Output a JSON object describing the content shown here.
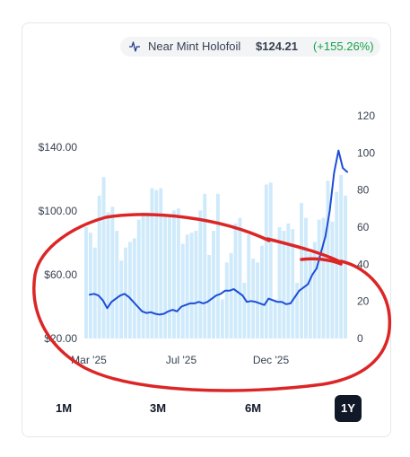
{
  "legend": {
    "icon": "trend-line-icon",
    "name": "Near Mint Holofoil",
    "price": "$124.21",
    "change": "(+155.26%)",
    "change_color": "#16a34a"
  },
  "range_buttons": [
    {
      "label": "1M",
      "active": false
    },
    {
      "label": "3M",
      "active": false
    },
    {
      "label": "6M",
      "active": false
    },
    {
      "label": "1Y",
      "active": true
    }
  ],
  "chart_data": {
    "type": "line",
    "x_ticks": [
      "Mar '25",
      "Jul '25",
      "Dec '25"
    ],
    "y_left": {
      "ticks": [
        "$20.00",
        "$60.00",
        "$100.00",
        "$140.00"
      ],
      "range": [
        20,
        140
      ]
    },
    "y_right": {
      "ticks": [
        "0",
        "20",
        "40",
        "60",
        "80",
        "100",
        "120"
      ],
      "range": [
        0,
        120
      ]
    },
    "series": [
      {
        "kind": "line",
        "color": "#1d4ed8",
        "axis": "left",
        "values": [
          47.5,
          48,
          47,
          44,
          39,
          43,
          45,
          47,
          48,
          46,
          43,
          40,
          37,
          36,
          36.5,
          35.5,
          35,
          35.5,
          37,
          38,
          37,
          40,
          41,
          42,
          42,
          43,
          42,
          43,
          45,
          47,
          48,
          50,
          50,
          51,
          49,
          47,
          43,
          43.5,
          43,
          42,
          41,
          45,
          44,
          43,
          43,
          41.5,
          42,
          46,
          50,
          52,
          54,
          60,
          64,
          74,
          84,
          100,
          124,
          138,
          127,
          124.5
        ]
      },
      {
        "kind": "bar",
        "color": "#cfeafb",
        "axis": "right",
        "values": [
          60,
          57,
          49,
          77,
          87,
          68,
          71,
          58,
          42,
          49,
          52,
          54,
          64,
          68,
          68,
          81,
          80,
          81,
          67,
          67,
          69,
          70,
          51,
          56,
          57,
          58,
          69,
          78,
          45,
          58,
          78,
          21,
          41,
          46,
          62,
          65,
          30,
          56,
          43,
          41,
          50,
          83,
          84,
          21,
          60,
          58,
          62,
          59,
          30,
          73,
          65,
          46,
          52,
          64,
          65,
          85,
          63,
          79,
          88,
          77
        ]
      }
    ]
  },
  "annotations": {
    "markup_color": "#dc2626"
  }
}
